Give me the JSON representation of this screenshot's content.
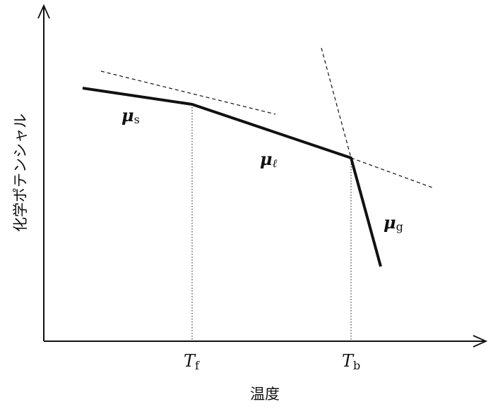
{
  "axes": {
    "y_label": "化学ポテンシャル",
    "x_label": "温度"
  },
  "curves": [
    {
      "symbol": "μ",
      "subscript": "s"
    },
    {
      "symbol": "μ",
      "subscript": "ℓ"
    },
    {
      "symbol": "μ",
      "subscript": "g"
    }
  ],
  "transitions": [
    {
      "symbol": "T",
      "subscript": "f"
    },
    {
      "symbol": "T",
      "subscript": "b"
    }
  ]
}
